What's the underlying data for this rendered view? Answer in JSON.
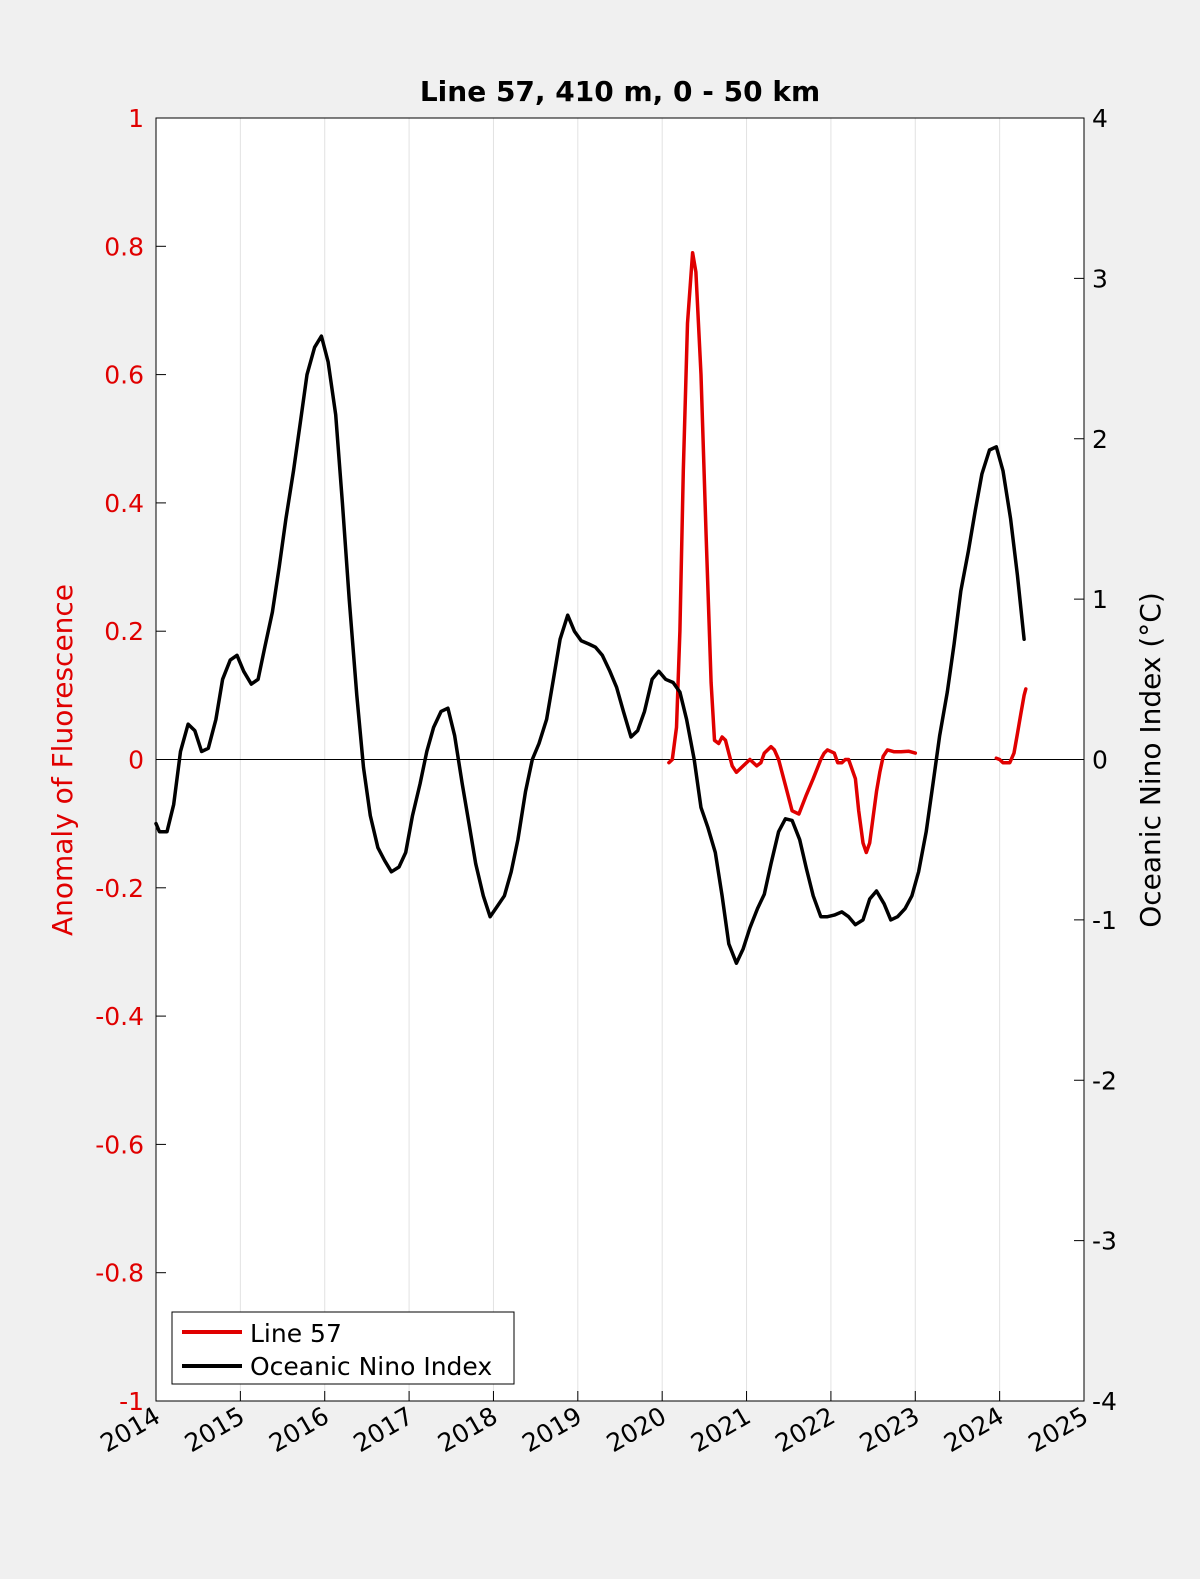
{
  "chart_data": {
    "type": "line",
    "title": "Line 57, 410 m, 0 - 50 km",
    "xlabel": "",
    "ylabel_left": "Anomaly of Fluorescence",
    "ylabel_right": "Oceanic Nino Index (°C)",
    "xlim": [
      2014,
      2025
    ],
    "ylim_left": [
      -1,
      1
    ],
    "ylim_right": [
      -4,
      4
    ],
    "x_ticks": [
      2014,
      2015,
      2016,
      2017,
      2018,
      2019,
      2020,
      2021,
      2022,
      2023,
      2024,
      2025
    ],
    "x_tick_labels": [
      "2014",
      "2015",
      "2016",
      "2017",
      "2018",
      "2019",
      "2020",
      "2021",
      "2022",
      "2023",
      "2024",
      "2025"
    ],
    "y_left_ticks": [
      -1,
      -0.8,
      -0.6,
      -0.4,
      -0.2,
      0,
      0.2,
      0.4,
      0.6,
      0.8,
      1
    ],
    "y_left_tick_labels": [
      "-1",
      "-0.8",
      "-0.6",
      "-0.4",
      "-0.2",
      "0",
      "0.2",
      "0.4",
      "0.6",
      "0.8",
      "1"
    ],
    "y_right_ticks": [
      -4,
      -3,
      -2,
      -1,
      0,
      1,
      2,
      3,
      4
    ],
    "y_right_tick_labels": [
      "-4",
      "-3",
      "-2",
      "-1",
      "0",
      "1",
      "2",
      "3",
      "4"
    ],
    "grid": "vertical lines at x ticks",
    "zero_line": true,
    "legend_position": "bottom-left",
    "colors": {
      "left_axis": "#e00000",
      "right_axis": "#000000",
      "background": "#f0f0f0",
      "plot_area": "#ffffff"
    },
    "series": [
      {
        "name": "Line 57",
        "axis": "left",
        "color": "#e00000",
        "segments": [
          [
            [
              2020.08,
              -0.005
            ],
            [
              2020.12,
              0.0
            ],
            [
              2020.17,
              0.05
            ],
            [
              2020.21,
              0.2
            ],
            [
              2020.25,
              0.45
            ],
            [
              2020.3,
              0.68
            ],
            [
              2020.36,
              0.79
            ],
            [
              2020.4,
              0.76
            ],
            [
              2020.46,
              0.6
            ],
            [
              2020.52,
              0.35
            ],
            [
              2020.58,
              0.12
            ],
            [
              2020.62,
              0.03
            ],
            [
              2020.67,
              0.025
            ],
            [
              2020.71,
              0.035
            ],
            [
              2020.75,
              0.03
            ],
            [
              2020.79,
              0.01
            ],
            [
              2020.83,
              -0.01
            ],
            [
              2020.88,
              -0.02
            ],
            [
              2020.92,
              -0.015
            ],
            [
              2020.96,
              -0.01
            ],
            [
              2021.04,
              0.0
            ],
            [
              2021.12,
              -0.01
            ],
            [
              2021.17,
              -0.005
            ],
            [
              2021.21,
              0.01
            ],
            [
              2021.29,
              0.02
            ],
            [
              2021.33,
              0.015
            ],
            [
              2021.38,
              0.0
            ],
            [
              2021.46,
              -0.04
            ],
            [
              2021.54,
              -0.08
            ],
            [
              2021.62,
              -0.085
            ],
            [
              2021.71,
              -0.055
            ],
            [
              2021.79,
              -0.03
            ],
            [
              2021.88,
              0.0
            ],
            [
              2021.92,
              0.01
            ],
            [
              2021.96,
              0.015
            ],
            [
              2022.04,
              0.01
            ],
            [
              2022.08,
              -0.005
            ],
            [
              2022.13,
              -0.005
            ],
            [
              2022.17,
              0.0
            ],
            [
              2022.21,
              0.0
            ],
            [
              2022.29,
              -0.03
            ],
            [
              2022.33,
              -0.08
            ],
            [
              2022.38,
              -0.13
            ],
            [
              2022.42,
              -0.145
            ],
            [
              2022.46,
              -0.13
            ],
            [
              2022.5,
              -0.09
            ],
            [
              2022.54,
              -0.05
            ],
            [
              2022.58,
              -0.02
            ],
            [
              2022.62,
              0.005
            ],
            [
              2022.67,
              0.015
            ],
            [
              2022.75,
              0.012
            ],
            [
              2022.83,
              0.012
            ],
            [
              2022.92,
              0.013
            ],
            [
              2023.0,
              0.01
            ]
          ],
          [
            [
              2023.96,
              0.002
            ],
            [
              2024.0,
              0.0
            ],
            [
              2024.04,
              -0.005
            ],
            [
              2024.12,
              -0.005
            ],
            [
              2024.17,
              0.01
            ],
            [
              2024.21,
              0.04
            ],
            [
              2024.25,
              0.07
            ],
            [
              2024.29,
              0.1
            ],
            [
              2024.31,
              0.11
            ]
          ]
        ]
      },
      {
        "name": "Oceanic Nino Index",
        "axis": "right",
        "color": "#000000",
        "points": [
          [
            2014.0,
            -0.4
          ],
          [
            2014.04,
            -0.45
          ],
          [
            2014.13,
            -0.45
          ],
          [
            2014.21,
            -0.28
          ],
          [
            2014.29,
            0.05
          ],
          [
            2014.38,
            0.22
          ],
          [
            2014.46,
            0.18
          ],
          [
            2014.54,
            0.05
          ],
          [
            2014.62,
            0.07
          ],
          [
            2014.71,
            0.25
          ],
          [
            2014.79,
            0.5
          ],
          [
            2014.88,
            0.62
          ],
          [
            2014.96,
            0.65
          ],
          [
            2015.04,
            0.55
          ],
          [
            2015.13,
            0.47
          ],
          [
            2015.21,
            0.5
          ],
          [
            2015.29,
            0.7
          ],
          [
            2015.38,
            0.92
          ],
          [
            2015.46,
            1.2
          ],
          [
            2015.54,
            1.5
          ],
          [
            2015.63,
            1.8
          ],
          [
            2015.71,
            2.1
          ],
          [
            2015.79,
            2.4
          ],
          [
            2015.88,
            2.57
          ],
          [
            2015.96,
            2.64
          ],
          [
            2016.04,
            2.48
          ],
          [
            2016.13,
            2.15
          ],
          [
            2016.21,
            1.6
          ],
          [
            2016.29,
            1.0
          ],
          [
            2016.38,
            0.4
          ],
          [
            2016.46,
            -0.05
          ],
          [
            2016.54,
            -0.35
          ],
          [
            2016.63,
            -0.55
          ],
          [
            2016.71,
            -0.63
          ],
          [
            2016.79,
            -0.7
          ],
          [
            2016.88,
            -0.67
          ],
          [
            2016.96,
            -0.58
          ],
          [
            2017.04,
            -0.35
          ],
          [
            2017.13,
            -0.15
          ],
          [
            2017.21,
            0.05
          ],
          [
            2017.29,
            0.2
          ],
          [
            2017.38,
            0.3
          ],
          [
            2017.46,
            0.32
          ],
          [
            2017.54,
            0.15
          ],
          [
            2017.63,
            -0.15
          ],
          [
            2017.71,
            -0.4
          ],
          [
            2017.79,
            -0.65
          ],
          [
            2017.88,
            -0.85
          ],
          [
            2017.96,
            -0.98
          ],
          [
            2018.04,
            -0.92
          ],
          [
            2018.13,
            -0.85
          ],
          [
            2018.21,
            -0.7
          ],
          [
            2018.29,
            -0.5
          ],
          [
            2018.38,
            -0.2
          ],
          [
            2018.46,
            0.0
          ],
          [
            2018.54,
            0.1
          ],
          [
            2018.63,
            0.25
          ],
          [
            2018.71,
            0.5
          ],
          [
            2018.79,
            0.75
          ],
          [
            2018.88,
            0.9
          ],
          [
            2018.96,
            0.8
          ],
          [
            2019.04,
            0.74
          ],
          [
            2019.13,
            0.72
          ],
          [
            2019.21,
            0.7
          ],
          [
            2019.29,
            0.65
          ],
          [
            2019.38,
            0.55
          ],
          [
            2019.46,
            0.45
          ],
          [
            2019.54,
            0.3
          ],
          [
            2019.63,
            0.14
          ],
          [
            2019.71,
            0.18
          ],
          [
            2019.79,
            0.3
          ],
          [
            2019.88,
            0.5
          ],
          [
            2019.96,
            0.55
          ],
          [
            2020.04,
            0.5
          ],
          [
            2020.13,
            0.48
          ],
          [
            2020.21,
            0.42
          ],
          [
            2020.29,
            0.25
          ],
          [
            2020.38,
            0.0
          ],
          [
            2020.46,
            -0.3
          ],
          [
            2020.54,
            -0.42
          ],
          [
            2020.63,
            -0.58
          ],
          [
            2020.71,
            -0.85
          ],
          [
            2020.79,
            -1.15
          ],
          [
            2020.88,
            -1.27
          ],
          [
            2020.96,
            -1.18
          ],
          [
            2021.04,
            -1.05
          ],
          [
            2021.13,
            -0.93
          ],
          [
            2021.21,
            -0.84
          ],
          [
            2021.29,
            -0.65
          ],
          [
            2021.38,
            -0.45
          ],
          [
            2021.46,
            -0.37
          ],
          [
            2021.54,
            -0.38
          ],
          [
            2021.63,
            -0.5
          ],
          [
            2021.71,
            -0.68
          ],
          [
            2021.79,
            -0.85
          ],
          [
            2021.88,
            -0.98
          ],
          [
            2021.96,
            -0.98
          ],
          [
            2022.04,
            -0.97
          ],
          [
            2022.13,
            -0.95
          ],
          [
            2022.21,
            -0.98
          ],
          [
            2022.29,
            -1.03
          ],
          [
            2022.38,
            -1.0
          ],
          [
            2022.46,
            -0.87
          ],
          [
            2022.54,
            -0.82
          ],
          [
            2022.63,
            -0.9
          ],
          [
            2022.71,
            -1.0
          ],
          [
            2022.79,
            -0.98
          ],
          [
            2022.88,
            -0.93
          ],
          [
            2022.96,
            -0.85
          ],
          [
            2023.04,
            -0.7
          ],
          [
            2023.13,
            -0.45
          ],
          [
            2023.21,
            -0.15
          ],
          [
            2023.29,
            0.15
          ],
          [
            2023.38,
            0.42
          ],
          [
            2023.46,
            0.72
          ],
          [
            2023.54,
            1.05
          ],
          [
            2023.63,
            1.3
          ],
          [
            2023.71,
            1.55
          ],
          [
            2023.79,
            1.78
          ],
          [
            2023.88,
            1.93
          ],
          [
            2023.96,
            1.95
          ],
          [
            2024.04,
            1.8
          ],
          [
            2024.13,
            1.5
          ],
          [
            2024.21,
            1.15
          ],
          [
            2024.29,
            0.75
          ]
        ]
      }
    ]
  },
  "legend": {
    "items": [
      {
        "label": "Line 57",
        "color": "#e00000"
      },
      {
        "label": "Oceanic Nino Index",
        "color": "#000000"
      }
    ]
  }
}
